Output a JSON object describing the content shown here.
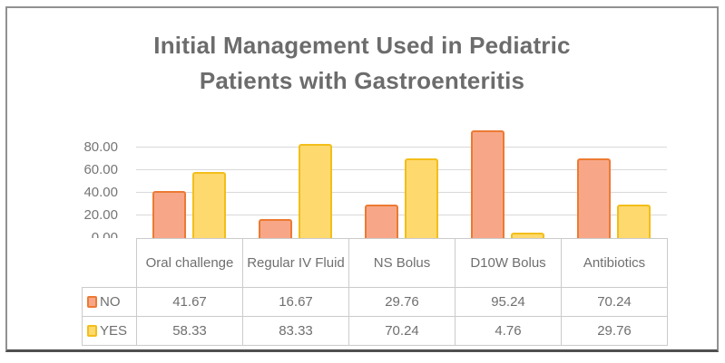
{
  "chart_data": {
    "type": "bar",
    "title": "Initial Management Used in Pediatric Patients with Gastroenteritis",
    "title_lines": [
      "Initial Management Used in Pediatric",
      "Patients with Gastroenteritis"
    ],
    "categories": [
      "Oral challenge",
      "Regular IV Fluid",
      "NS Bolus",
      "D10W Bolus",
      "Antibiotics"
    ],
    "series": [
      {
        "name": "NO",
        "values": [
          41.67,
          16.67,
          29.76,
          95.24,
          70.24
        ],
        "fill": "#F7A788",
        "border": "#EC7A33"
      },
      {
        "name": "YES",
        "values": [
          58.33,
          83.33,
          70.24,
          4.76,
          29.76
        ],
        "fill": "#FED96E",
        "border": "#F3BE1A"
      }
    ],
    "y_ticks": [
      "0.00",
      "20.00",
      "40.00",
      "60.00",
      "80.00"
    ],
    "ylim": [
      0,
      100
    ],
    "grid": true,
    "legend_position": "data-table-left",
    "data_table_shown": true,
    "xlabel": "",
    "ylabel": ""
  },
  "colors": {
    "title_text": "#6c6c6c",
    "axis_text": "#757575",
    "table_text": "#6f6f6f",
    "gridline": "#d9d9d9",
    "table_border": "#cbcbcb",
    "frame_border": "#919191",
    "frame_border_bottom": "#4f4f4f",
    "background": "#ffffff"
  }
}
